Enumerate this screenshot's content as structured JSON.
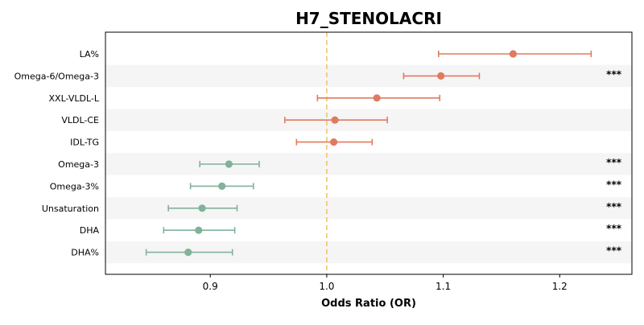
{
  "chart_data": {
    "type": "forest",
    "title": "H7_STENOLACRI",
    "xlabel": "Odds Ratio (OR)",
    "ylabel": "",
    "xlim": [
      0.81,
      1.262
    ],
    "x_ticks": [
      0.9,
      1.0,
      1.1,
      1.2
    ],
    "x_tick_labels": [
      "0.9",
      "1.0",
      "1.1",
      "1.2"
    ],
    "reference_line": 1.0,
    "grid": false,
    "colors": {
      "positive": "#e07a5f",
      "negative": "#81b29a",
      "reference": "#f2c46d",
      "band": "#f5f5f5"
    },
    "rows": [
      {
        "label": "LA%",
        "or": 1.16,
        "lower": 1.096,
        "upper": 1.227,
        "sig": ""
      },
      {
        "label": "Omega-6/Omega-3",
        "or": 1.098,
        "lower": 1.066,
        "upper": 1.131,
        "sig": "***"
      },
      {
        "label": "XXL-VLDL-L",
        "or": 1.043,
        "lower": 0.992,
        "upper": 1.097,
        "sig": ""
      },
      {
        "label": "VLDL-CE",
        "or": 1.007,
        "lower": 0.964,
        "upper": 1.052,
        "sig": ""
      },
      {
        "label": "IDL-TG",
        "or": 1.006,
        "lower": 0.974,
        "upper": 1.039,
        "sig": ""
      },
      {
        "label": "Omega-3",
        "or": 0.916,
        "lower": 0.891,
        "upper": 0.942,
        "sig": "***"
      },
      {
        "label": "Omega-3%",
        "or": 0.91,
        "lower": 0.883,
        "upper": 0.937,
        "sig": "***"
      },
      {
        "label": "Unsaturation",
        "or": 0.893,
        "lower": 0.864,
        "upper": 0.923,
        "sig": "***"
      },
      {
        "label": "DHA",
        "or": 0.89,
        "lower": 0.86,
        "upper": 0.921,
        "sig": "***"
      },
      {
        "label": "DHA%",
        "or": 0.881,
        "lower": 0.845,
        "upper": 0.919,
        "sig": "***"
      }
    ]
  }
}
